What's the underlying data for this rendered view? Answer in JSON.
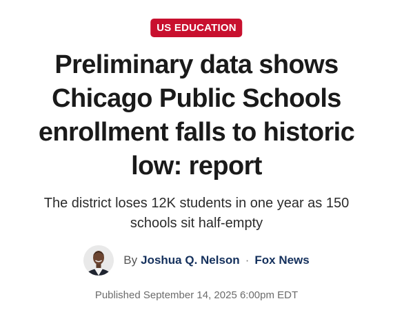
{
  "article": {
    "category": "US EDUCATION",
    "headline": "Preliminary data shows Chicago Public Schools enrollment falls to historic low: report",
    "subheadline": "The district loses 12K students in one year as 150 schools sit half-empty",
    "byline": {
      "prefix": "By",
      "author": "Joshua Q. Nelson",
      "separator": "·",
      "outlet": "Fox News",
      "avatar_icon": "author-portrait"
    },
    "published": "Published September 14, 2025 6:00pm EDT"
  },
  "colors": {
    "badge_background": "#c8102e",
    "badge_text": "#ffffff",
    "headline_text": "#1a1a1a",
    "link_text": "#14305c",
    "meta_text": "#6b6b6b"
  }
}
